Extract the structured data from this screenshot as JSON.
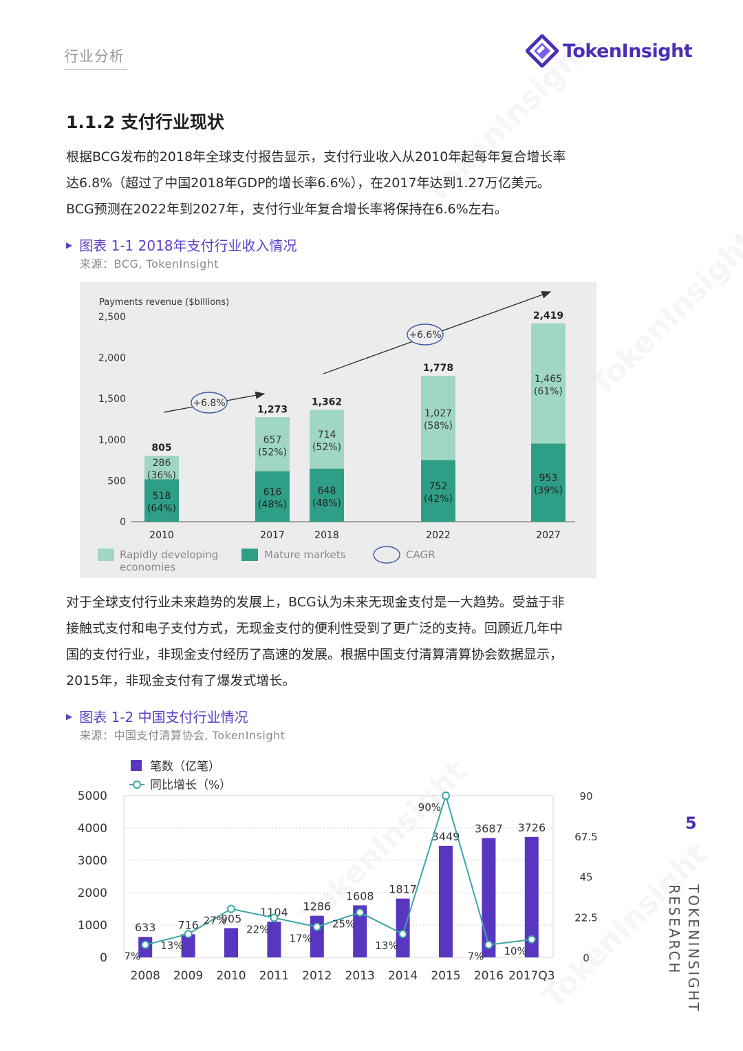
{
  "header": {
    "section_label": "行业分析",
    "brand_name": "TokenInsight"
  },
  "section": {
    "title": "1.1.2 支付行业现状",
    "intro_lines": [
      "根据BCG发布的2018年全球支付报告显示，支付行业收入从2010年起每年复合增长率",
      "达6.8%（超过了中国2018年GDP的增长率6.6%），在2017年达到1.27万亿美元。",
      "BCG预测在2022年到2027年，支付行业年复合增长率将保持在6.6%左右。"
    ],
    "middle_lines": [
      "对于全球支付行业未来趋势的发展上，BCG认为未来无现金支付是一大趋势。受益于非",
      "接触式支付和电子支付方式，无现金支付的便利性受到了更广泛的支持。回顾近几年中",
      "国的支付行业，非现金支付经历了高速的发展。根据中国支付清算清算协会数据显示，",
      "2015年，非现金支付有了爆发式增长。"
    ]
  },
  "figure1": {
    "caption": "图表 1-1 2018年支付行业收入情况",
    "source": "来源：BCG, TokenInsight"
  },
  "figure2": {
    "caption": "图表 1-2 中国支付行业情况",
    "source": "来源：中国支付清算协会, TokenInsight"
  },
  "page": {
    "number": "5",
    "vertical_brand": "TOKENINSIGHT RESEARCH"
  },
  "watermark_text": "TokenInsight",
  "colors": {
    "brand_purple": "#4a2fb6",
    "caption_purple": "#5a3fc8",
    "mature_green": "#2f9e86",
    "developing_green": "#9fd6c4",
    "bar_purple": "#5936c0",
    "line_teal": "#3aa6a6"
  },
  "chart_data": [
    {
      "type": "bar",
      "stacked": true,
      "ylabel": "Payments revenue ($billions)",
      "ylim": [
        0,
        2500
      ],
      "yticks": [
        "0",
        "500",
        "1,000",
        "1,500",
        "2,000",
        "2,500"
      ],
      "categories": [
        "2010",
        "2017",
        "2018",
        "2022",
        "2027"
      ],
      "totals": [
        "805",
        "1,273",
        "1,362",
        "1,778",
        "2,419"
      ],
      "series": [
        {
          "name": "Mature markets",
          "values": [
            518,
            616,
            648,
            752,
            953
          ],
          "labels": [
            "518",
            "616",
            "648",
            "752",
            "953"
          ],
          "pct": [
            "(64%)",
            "(48%)",
            "(48%)",
            "(42%)",
            "(39%)"
          ],
          "color": "#2f9e86"
        },
        {
          "name": "Rapidly developing economies",
          "values": [
            286,
            657,
            714,
            1027,
            1465
          ],
          "labels": [
            "286",
            "657",
            "714",
            "1,027",
            "1,465"
          ],
          "pct": [
            "(36%)",
            "(52%)",
            "(52%)",
            "(58%)",
            "(61%)"
          ],
          "color": "#9fd6c4"
        }
      ],
      "legend": [
        "Rapidly developing economies",
        "Mature markets",
        "CAGR"
      ],
      "legend_position": "bottom",
      "annotations": [
        "+6.8%",
        "+6.6%"
      ]
    },
    {
      "type": "bar",
      "categories": [
        "2008",
        "2009",
        "2010",
        "2011",
        "2012",
        "2013",
        "2014",
        "2015",
        "2016",
        "2017Q3"
      ],
      "ylim": [
        0,
        5000
      ],
      "yticks": [
        "0",
        "1000",
        "2000",
        "3000",
        "4000",
        "5000"
      ],
      "y2lim": [
        0,
        90
      ],
      "y2ticks": [
        "0",
        "22.5",
        "45",
        "67.5",
        "90"
      ],
      "legend_position": "top-left",
      "series": [
        {
          "name": "笔数（亿笔）",
          "type": "bar",
          "values": [
            633,
            716,
            905,
            1104,
            1286,
            1608,
            1817,
            3449,
            3687,
            3726
          ],
          "labels": [
            "633",
            "716",
            "905",
            "1104",
            "1286",
            "1608",
            "1817",
            "3449",
            "3687",
            "3726"
          ],
          "color": "#5936c0"
        },
        {
          "name": "同比增长（%）",
          "type": "line",
          "axis": "right",
          "values": [
            7,
            13,
            27,
            22,
            17,
            25,
            13,
            90,
            7,
            10
          ],
          "labels": [
            "7%",
            "13%",
            "27%",
            "22%",
            "17%",
            "25%",
            "13%",
            "90%",
            "7%",
            "10%"
          ],
          "color": "#3aa6a6"
        }
      ]
    }
  ]
}
